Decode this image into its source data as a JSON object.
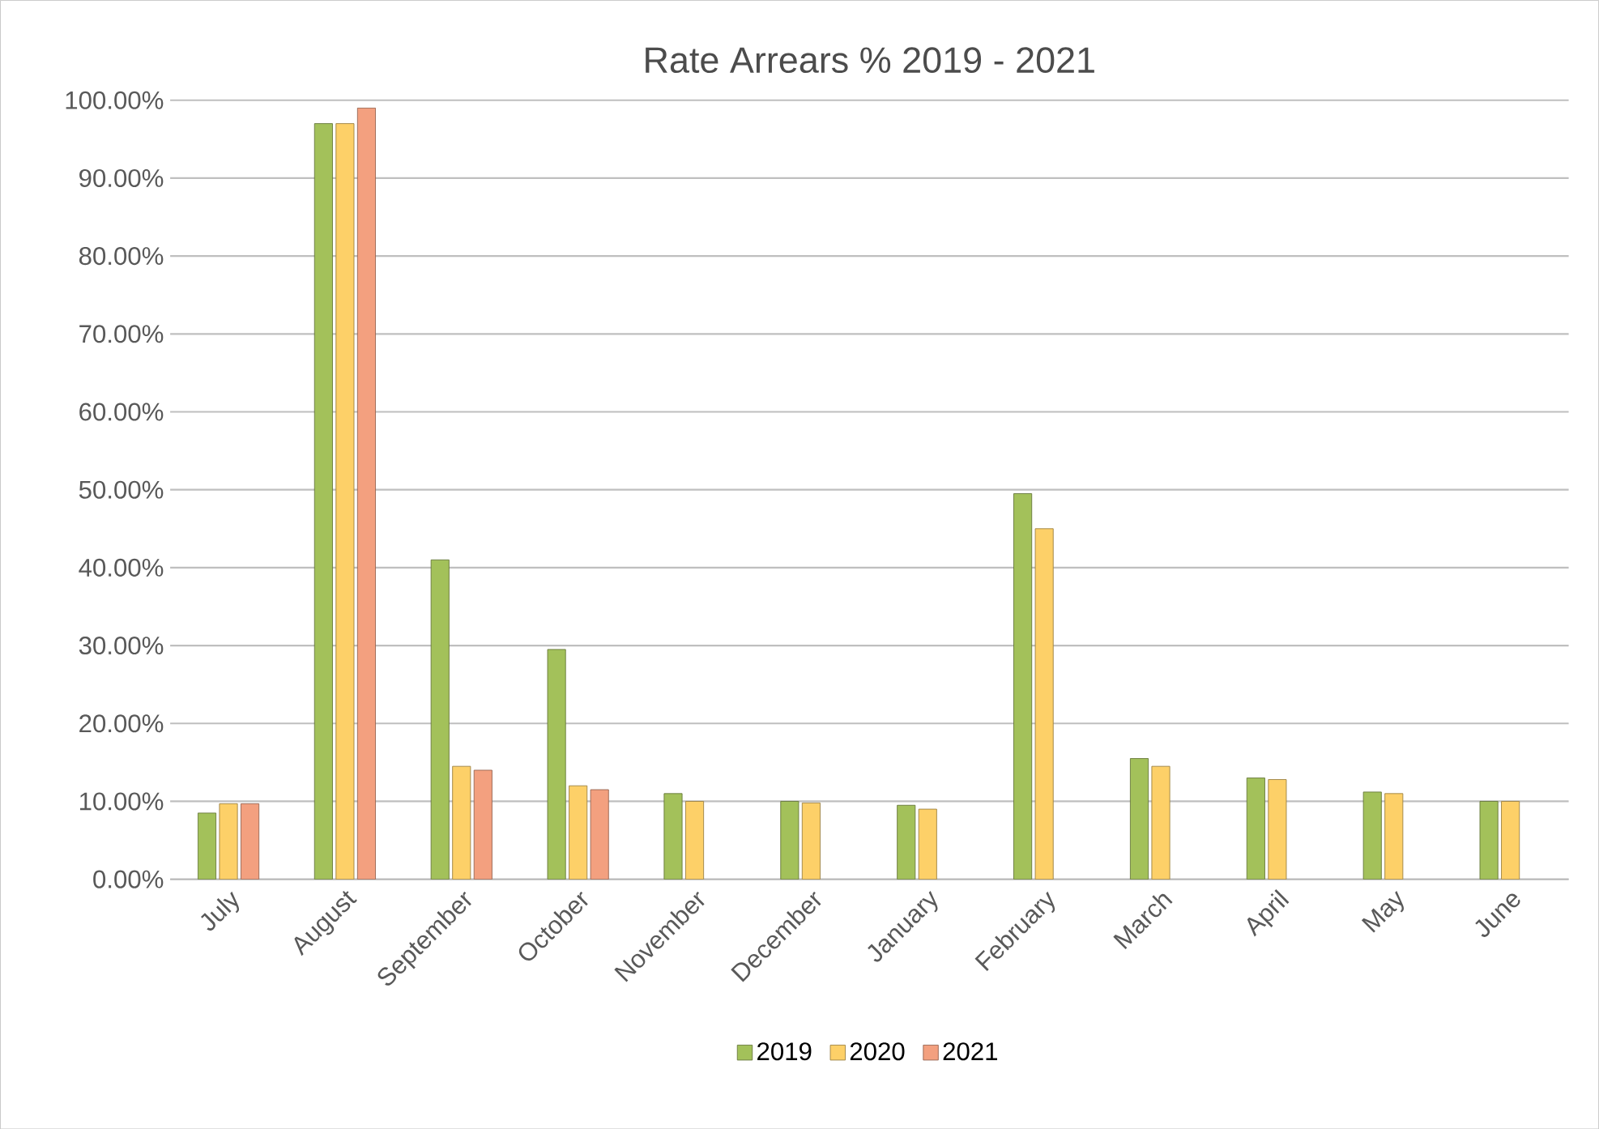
{
  "chart_data": {
    "type": "bar",
    "title": "Rate Arrears % 2019 - 2021",
    "categories": [
      "July",
      "August",
      "September",
      "October",
      "November",
      "December",
      "January",
      "February",
      "March",
      "April",
      "May",
      "June"
    ],
    "series": [
      {
        "name": "2019",
        "color": "#a3c15a",
        "values": [
          8.5,
          97,
          41,
          29.5,
          11,
          10,
          9.5,
          49.5,
          15.5,
          13,
          11.2,
          10
        ]
      },
      {
        "name": "2020",
        "color": "#fdd068",
        "values": [
          9.7,
          97,
          14.5,
          12,
          10,
          9.8,
          9,
          45,
          14.5,
          12.8,
          11,
          10
        ]
      },
      {
        "name": "2021",
        "color": "#f3a07f",
        "values": [
          9.7,
          99,
          14,
          11.5,
          null,
          null,
          null,
          null,
          null,
          null,
          null,
          null
        ]
      }
    ],
    "ylim": [
      0,
      100
    ],
    "yticks": [
      {
        "value": 0,
        "label": "0.00%"
      },
      {
        "value": 10,
        "label": "10.00%"
      },
      {
        "value": 20,
        "label": "20.00%"
      },
      {
        "value": 30,
        "label": "30.00%"
      },
      {
        "value": 40,
        "label": "40.00%"
      },
      {
        "value": 50,
        "label": "50.00%"
      },
      {
        "value": 60,
        "label": "60.00%"
      },
      {
        "value": 70,
        "label": "70.00%"
      },
      {
        "value": 80,
        "label": "80.00%"
      },
      {
        "value": 90,
        "label": "90.00%"
      },
      {
        "value": 100,
        "label": "100.00%"
      }
    ],
    "grid": "y",
    "legend": "bottom"
  }
}
